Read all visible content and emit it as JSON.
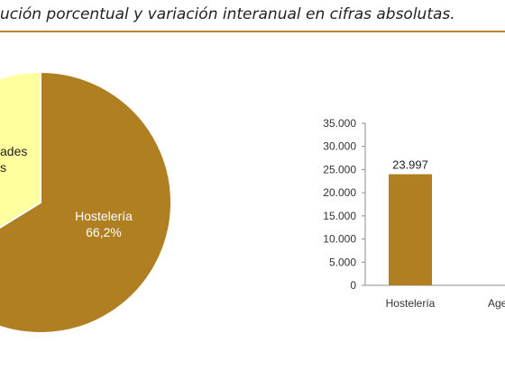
{
  "header": {
    "title": "ución porcentual y variación interanual en cifras absolutas.",
    "accent_color": "#b8862a"
  },
  "chart_data": [
    {
      "type": "pie",
      "slices": [
        {
          "label": "Hostelería",
          "value_label": "66,2%",
          "value": 66.2,
          "color": "#b07f22"
        },
        {
          "label": "…ades\n…s",
          "value": 33.8,
          "color": "#ffff9e"
        }
      ],
      "visible_text": {
        "hosteleria_label": "Hostelería",
        "hosteleria_value": "66,2%",
        "other_line1": "ades",
        "other_line2": "s"
      }
    },
    {
      "type": "bar",
      "categories": [
        "Hostelería",
        "Agen"
      ],
      "values": [
        23997,
        null
      ],
      "value_labels": [
        "23.997",
        ""
      ],
      "ylim": [
        0,
        35000
      ],
      "yticks": [
        "0",
        "5.000",
        "10.000",
        "15.000",
        "20.000",
        "25.000",
        "30.000",
        "35.000"
      ],
      "bar_color": "#b07f22",
      "grid": false
    }
  ]
}
